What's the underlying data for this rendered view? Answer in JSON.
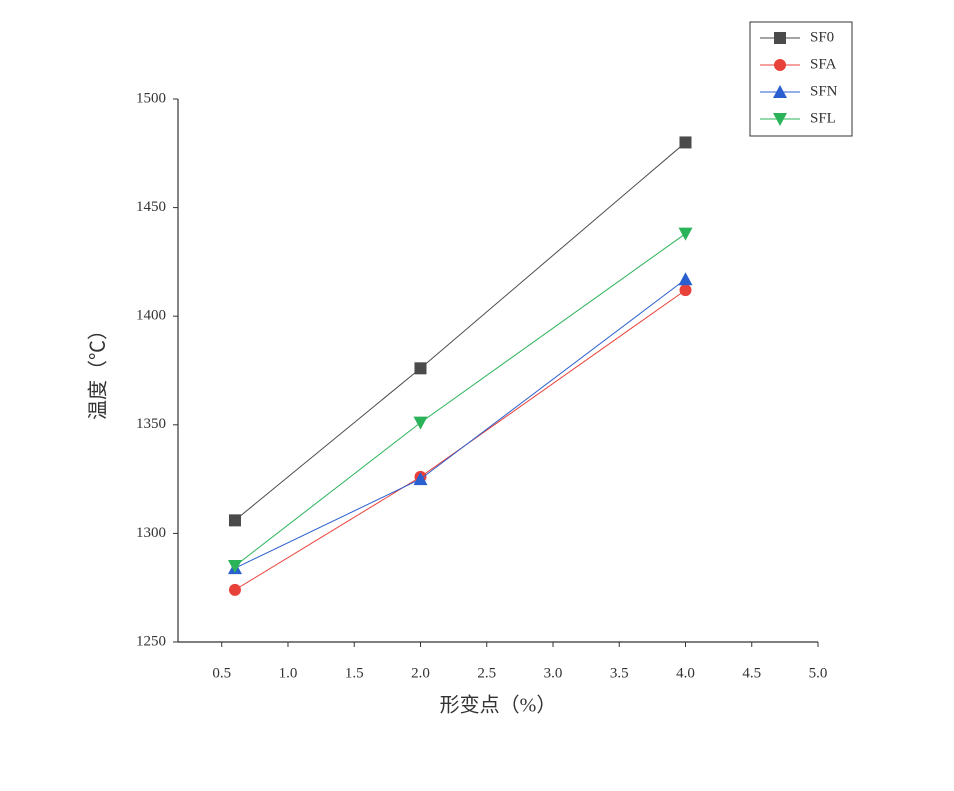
{
  "chart_data": {
    "type": "line",
    "xlabel": "形变点（%）",
    "ylabel": "温度（℃）",
    "xlim": [
      0.17,
      5.0
    ],
    "ylim": [
      1250,
      1500
    ],
    "xticks": [
      0.5,
      {
        "value": 1,
        "label": "1.0"
      },
      1.5,
      {
        "value": 2,
        "label": "2.0"
      },
      2.5,
      {
        "value": 3,
        "label": "3.0"
      },
      3.5,
      {
        "value": 4,
        "label": "4.0"
      },
      4.5,
      {
        "value": 5,
        "label": "5.0"
      }
    ],
    "yticks": [
      1250,
      1300,
      1350,
      1400,
      1450,
      1500
    ],
    "legend": "upper-right",
    "series": [
      {
        "name": "SF0",
        "color": "#4a4a4a",
        "marker": "square",
        "x": [
          0.6,
          2.0,
          4.0
        ],
        "values": [
          1306,
          1376,
          1480
        ]
      },
      {
        "name": "SFA",
        "color": "#e8413a",
        "marker": "circle",
        "x": [
          0.6,
          2.0,
          4.0
        ],
        "values": [
          1274,
          1326,
          1412
        ]
      },
      {
        "name": "SFN",
        "color": "#2a5fcf",
        "marker": "triangle-up",
        "x": [
          0.6,
          2.0,
          4.0
        ],
        "values": [
          1284,
          1325,
          1417
        ]
      },
      {
        "name": "SFL",
        "color": "#2bb35a",
        "marker": "triangle-down",
        "x": [
          0.6,
          2.0,
          4.0
        ],
        "values": [
          1285,
          1351,
          1438
        ]
      }
    ]
  }
}
